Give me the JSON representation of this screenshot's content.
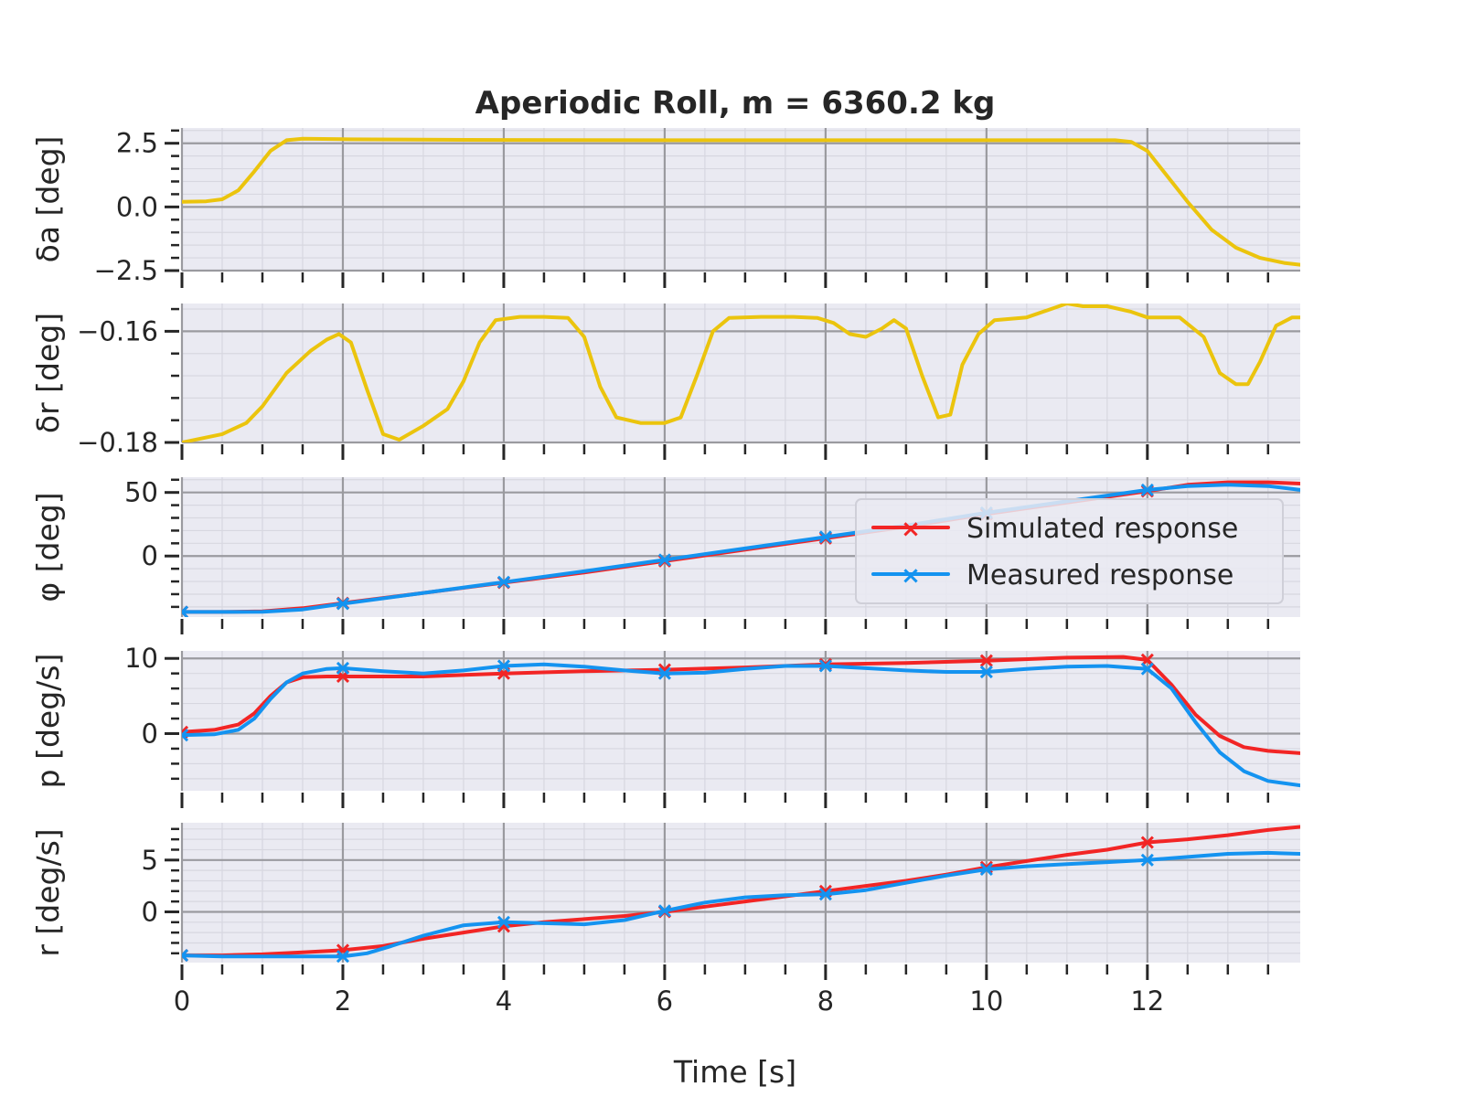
{
  "title": "Aperiodic Roll, m = 6360.2 kg",
  "xlabel": "Time [s]",
  "legend": [
    "Simulated response",
    "Measured response"
  ],
  "colors": {
    "input": "#ebc40d",
    "simulated": "#f22525",
    "measured": "#1493f0",
    "panel_bg": "#eaeaf2",
    "grid_major": "#9a9a9f",
    "grid_minor": "#d7d7e0",
    "text": "#262626"
  },
  "chart_data": [
    {
      "type": "line",
      "ylabel": "δa [deg]",
      "xlim": [
        0,
        13.9
      ],
      "ylim": [
        -2.5,
        3.1
      ],
      "xticks": [
        0,
        2,
        4,
        6,
        8,
        10,
        12
      ],
      "yticks": [
        2.5,
        0.0,
        -2.5
      ],
      "ytick_labels": [
        "2.5",
        "0.0",
        "−2.5"
      ],
      "series": [
        {
          "key": "input",
          "x": [
            0,
            0.3,
            0.5,
            0.7,
            0.9,
            1.1,
            1.3,
            1.5,
            2,
            3,
            4,
            6,
            8,
            10,
            11,
            11.6,
            11.8,
            12.0,
            12.2,
            12.5,
            12.8,
            13.1,
            13.4,
            13.7,
            13.9
          ],
          "y": [
            0.2,
            0.22,
            0.3,
            0.65,
            1.4,
            2.2,
            2.62,
            2.68,
            2.66,
            2.64,
            2.63,
            2.62,
            2.62,
            2.62,
            2.62,
            2.62,
            2.55,
            2.2,
            1.4,
            0.2,
            -0.9,
            -1.6,
            -2.0,
            -2.2,
            -2.27
          ]
        }
      ]
    },
    {
      "type": "line",
      "ylabel": "δr [deg]",
      "xlim": [
        0,
        13.9
      ],
      "ylim": [
        -0.18,
        -0.155
      ],
      "xticks": [
        0,
        2,
        4,
        6,
        8,
        10,
        12
      ],
      "yticks": [
        -0.16,
        -0.18
      ],
      "ytick_labels": [
        "−0.16",
        "−0.18"
      ],
      "series": [
        {
          "key": "input",
          "x": [
            0,
            0.5,
            0.8,
            1.0,
            1.3,
            1.6,
            1.8,
            1.95,
            2.1,
            2.3,
            2.5,
            2.7,
            3.0,
            3.3,
            3.5,
            3.7,
            3.9,
            4.2,
            4.5,
            4.8,
            5.0,
            5.2,
            5.4,
            5.7,
            6.0,
            6.2,
            6.4,
            6.6,
            6.8,
            7.2,
            7.6,
            7.9,
            8.1,
            8.3,
            8.5,
            8.7,
            8.85,
            9.0,
            9.2,
            9.4,
            9.55,
            9.7,
            9.9,
            10.1,
            10.5,
            10.8,
            11.0,
            11.2,
            11.5,
            11.8,
            12.0,
            12.4,
            12.7,
            12.9,
            13.1,
            13.25,
            13.4,
            13.6,
            13.8,
            13.9
          ],
          "y": [
            -0.18,
            -0.1785,
            -0.1765,
            -0.1735,
            -0.1675,
            -0.1635,
            -0.1615,
            -0.1605,
            -0.162,
            -0.1705,
            -0.1785,
            -0.1795,
            -0.177,
            -0.174,
            -0.169,
            -0.162,
            -0.158,
            -0.1574,
            -0.1574,
            -0.1576,
            -0.161,
            -0.17,
            -0.1755,
            -0.1765,
            -0.1765,
            -0.1755,
            -0.168,
            -0.16,
            -0.1576,
            -0.1574,
            -0.1574,
            -0.1576,
            -0.1585,
            -0.1605,
            -0.161,
            -0.1595,
            -0.158,
            -0.1595,
            -0.168,
            -0.1755,
            -0.175,
            -0.166,
            -0.1605,
            -0.158,
            -0.1575,
            -0.156,
            -0.155,
            -0.1555,
            -0.1555,
            -0.1565,
            -0.1575,
            -0.1575,
            -0.161,
            -0.1675,
            -0.1695,
            -0.1695,
            -0.1655,
            -0.159,
            -0.1575,
            -0.1575
          ]
        }
      ]
    },
    {
      "type": "line",
      "ylabel": "φ [deg]",
      "xlim": [
        0,
        13.9
      ],
      "ylim": [
        -48,
        62
      ],
      "xticks": [
        0,
        2,
        4,
        6,
        8,
        10,
        12
      ],
      "yticks": [
        50,
        0
      ],
      "ytick_labels": [
        "50",
        "0"
      ],
      "legend_location": "right",
      "series": [
        {
          "key": "simulated",
          "name": "Simulated response",
          "x": [
            0,
            0.5,
            1.0,
            1.5,
            2,
            3,
            4,
            5,
            6,
            7,
            8,
            9,
            10,
            11,
            12,
            12.5,
            13,
            13.5,
            13.9
          ],
          "y": [
            -44,
            -44,
            -43.5,
            -41,
            -37,
            -29,
            -21,
            -13,
            -4,
            5,
            14,
            23,
            33,
            42,
            51,
            56,
            58,
            58,
            57
          ]
        },
        {
          "key": "measured",
          "name": "Measured response",
          "x": [
            0,
            0.5,
            1.0,
            1.5,
            2,
            3,
            4,
            5,
            6,
            7,
            8,
            9,
            10,
            11,
            12,
            12.5,
            13,
            13.5,
            13.9
          ],
          "y": [
            -44,
            -44,
            -43.8,
            -42,
            -37.5,
            -29,
            -20.5,
            -12,
            -3,
            6,
            15,
            24,
            34,
            43,
            52,
            55,
            56,
            55,
            52
          ]
        }
      ]
    },
    {
      "type": "line",
      "ylabel": "p [deg/s]",
      "xlim": [
        0,
        13.9
      ],
      "ylim": [
        -7.6,
        11
      ],
      "xticks": [
        0,
        2,
        4,
        6,
        8,
        10,
        12
      ],
      "yticks": [
        10,
        0
      ],
      "ytick_labels": [
        "10",
        "0"
      ],
      "series": [
        {
          "key": "simulated",
          "x": [
            0,
            0.4,
            0.7,
            0.9,
            1.1,
            1.3,
            1.5,
            1.8,
            2,
            3,
            4,
            5,
            6,
            7,
            8,
            9,
            10,
            11,
            11.7,
            12.0,
            12.3,
            12.6,
            12.9,
            13.2,
            13.5,
            13.9
          ],
          "y": [
            0.2,
            0.5,
            1.2,
            2.7,
            5.0,
            6.8,
            7.5,
            7.6,
            7.6,
            7.6,
            8.0,
            8.3,
            8.5,
            8.8,
            9.2,
            9.4,
            9.7,
            10.1,
            10.2,
            9.8,
            6.5,
            2.5,
            -0.3,
            -1.8,
            -2.3,
            -2.6
          ]
        },
        {
          "key": "measured",
          "x": [
            0,
            0.4,
            0.7,
            0.9,
            1.1,
            1.3,
            1.5,
            1.8,
            2,
            2.5,
            3,
            3.5,
            4,
            4.5,
            5,
            5.5,
            6,
            6.5,
            7,
            7.5,
            8,
            8.5,
            9,
            9.5,
            10,
            10.5,
            11,
            11.5,
            12,
            12.3,
            12.6,
            12.9,
            13.2,
            13.5,
            13.9
          ],
          "y": [
            -0.2,
            -0.1,
            0.5,
            2.0,
            4.6,
            6.8,
            8.0,
            8.6,
            8.7,
            8.3,
            8.0,
            8.4,
            9.0,
            9.2,
            8.9,
            8.4,
            8.0,
            8.1,
            8.6,
            9.0,
            9.0,
            8.7,
            8.4,
            8.2,
            8.2,
            8.6,
            8.9,
            9.0,
            8.6,
            6.0,
            1.5,
            -2.5,
            -5.0,
            -6.3,
            -6.9
          ]
        }
      ]
    },
    {
      "type": "line",
      "ylabel": "r [deg/s]",
      "xlim": [
        0,
        13.9
      ],
      "ylim": [
        -4.9,
        8.6
      ],
      "xticks": [
        0,
        2,
        4,
        6,
        8,
        10,
        12
      ],
      "yticks": [
        5,
        0
      ],
      "ytick_labels": [
        "5",
        "0"
      ],
      "series": [
        {
          "key": "simulated",
          "x": [
            0,
            0.5,
            1,
            1.5,
            2,
            2.5,
            3,
            3.5,
            4,
            4.5,
            5,
            5.5,
            6,
            6.5,
            7,
            7.5,
            8,
            8.5,
            9,
            9.5,
            10,
            10.5,
            11,
            11.5,
            12,
            12.5,
            13,
            13.5,
            13.9
          ],
          "y": [
            -4.2,
            -4.2,
            -4.1,
            -3.9,
            -3.7,
            -3.3,
            -2.6,
            -2.0,
            -1.4,
            -1.0,
            -0.7,
            -0.4,
            0.0,
            0.5,
            1.0,
            1.5,
            2.0,
            2.5,
            3.0,
            3.6,
            4.3,
            4.9,
            5.5,
            6.0,
            6.7,
            7.0,
            7.4,
            7.9,
            8.2
          ]
        },
        {
          "key": "measured",
          "x": [
            0,
            0.5,
            1,
            1.5,
            2,
            2.3,
            2.6,
            3,
            3.5,
            4,
            4.5,
            5,
            5.5,
            6,
            6.5,
            7,
            7.5,
            8,
            8.5,
            9,
            9.5,
            10,
            10.5,
            11,
            11.5,
            12,
            12.5,
            13,
            13.5,
            13.9
          ],
          "y": [
            -4.2,
            -4.3,
            -4.3,
            -4.3,
            -4.3,
            -4.0,
            -3.3,
            -2.3,
            -1.3,
            -1.0,
            -1.1,
            -1.2,
            -0.8,
            0.1,
            0.9,
            1.4,
            1.6,
            1.7,
            2.1,
            2.8,
            3.5,
            4.1,
            4.4,
            4.6,
            4.8,
            5.0,
            5.3,
            5.6,
            5.7,
            5.6
          ]
        }
      ]
    }
  ]
}
